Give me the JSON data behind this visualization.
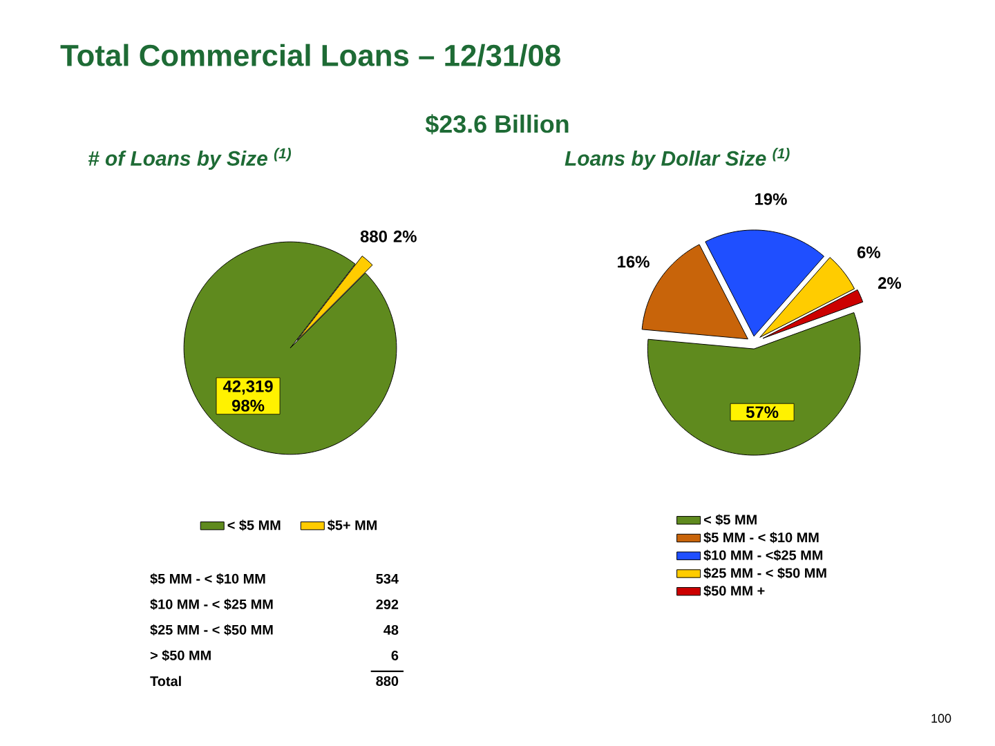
{
  "chart_data": [
    {
      "type": "pie",
      "title": "Total Commercial Loans – 12/31/08",
      "subtitle": "# of Loans by Size $^{(1)}$",
      "categories": [
        "< $5 MM",
        "$5+ MM"
      ],
      "values": [
        42319,
        880
      ],
      "colors": [
        "#5f8a1e",
        "#ffcc00"
      ],
      "value_labels": [
        "42,319 98%",
        "880 2%"
      ],
      "legend": "bottom",
      "annotations": [
        "$5 MM - < $10 MM",
        "534",
        "$10 MM - < $25 MM",
        "292",
        "$25 MM - < $50 MM",
        "48",
        "> $50 MM",
        "6",
        "Total",
        "880"
      ]
    },
    {
      "type": "pie",
      "title": "Loans by Dollar Size $^{(1)}$",
      "subtitle": "$23.6 Billion",
      "categories": [
        "< $5 MM",
        "$5 MM - < $10 MM",
        "$10 MM - <$25 MM",
        "$25 MM - < $50 MM",
        "$50 MM +"
      ],
      "values": [
        57,
        16,
        19,
        6,
        2
      ],
      "colors": [
        "#5f8a1e",
        "#c8640a",
        "#1f4fff",
        "#ffcc00",
        "#cc0000"
      ],
      "value_labels": [
        "57%",
        "16%",
        "19%",
        "6%",
        "2%"
      ],
      "legend": "bottom",
      "annotations": [
        "100"
      ]
    }
  ]
}
